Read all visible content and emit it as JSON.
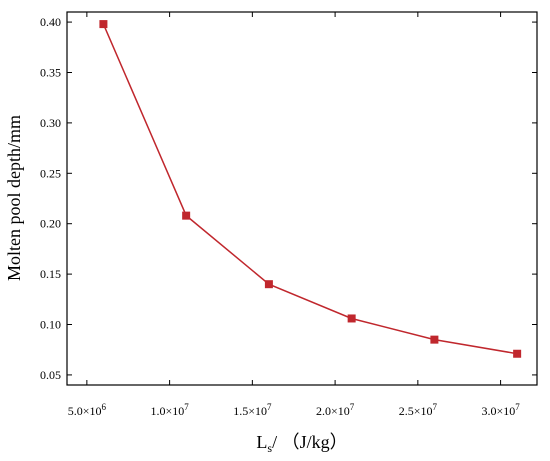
{
  "chart_data": {
    "type": "line",
    "title": "",
    "xlabel": {
      "main": "L",
      "subscript": "s",
      "rest": "/ （J/kg）"
    },
    "ylabel": "Molten pool depth/mm",
    "xlim": [
      3800000,
      32200000
    ],
    "ylim": [
      0.04,
      0.41
    ],
    "x_ticks": [
      {
        "value": 5000000,
        "mantissa": "5.0×10",
        "exp": "6"
      },
      {
        "value": 10000000,
        "mantissa": "1.0×10",
        "exp": "7"
      },
      {
        "value": 15000000,
        "mantissa": "1.5×10",
        "exp": "7"
      },
      {
        "value": 20000000,
        "mantissa": "2.0×10",
        "exp": "7"
      },
      {
        "value": 25000000,
        "mantissa": "2.5×10",
        "exp": "7"
      },
      {
        "value": 30000000,
        "mantissa": "3.0×10",
        "exp": "7"
      }
    ],
    "y_ticks": [
      {
        "value": 0.05,
        "label": "0.05"
      },
      {
        "value": 0.1,
        "label": "0.10"
      },
      {
        "value": 0.15,
        "label": "0.15"
      },
      {
        "value": 0.2,
        "label": "0.20"
      },
      {
        "value": 0.25,
        "label": "0.25"
      },
      {
        "value": 0.3,
        "label": "0.30"
      },
      {
        "value": 0.35,
        "label": "0.35"
      },
      {
        "value": 0.4,
        "label": "0.40"
      }
    ],
    "grid": false,
    "legend": "none",
    "series": [
      {
        "color": "#c0272d",
        "marker": "square",
        "x": [
          6000000,
          11000000,
          16000000,
          21000000,
          26000000,
          31000000
        ],
        "y": [
          0.398,
          0.208,
          0.14,
          0.106,
          0.085,
          0.071
        ]
      }
    ]
  }
}
